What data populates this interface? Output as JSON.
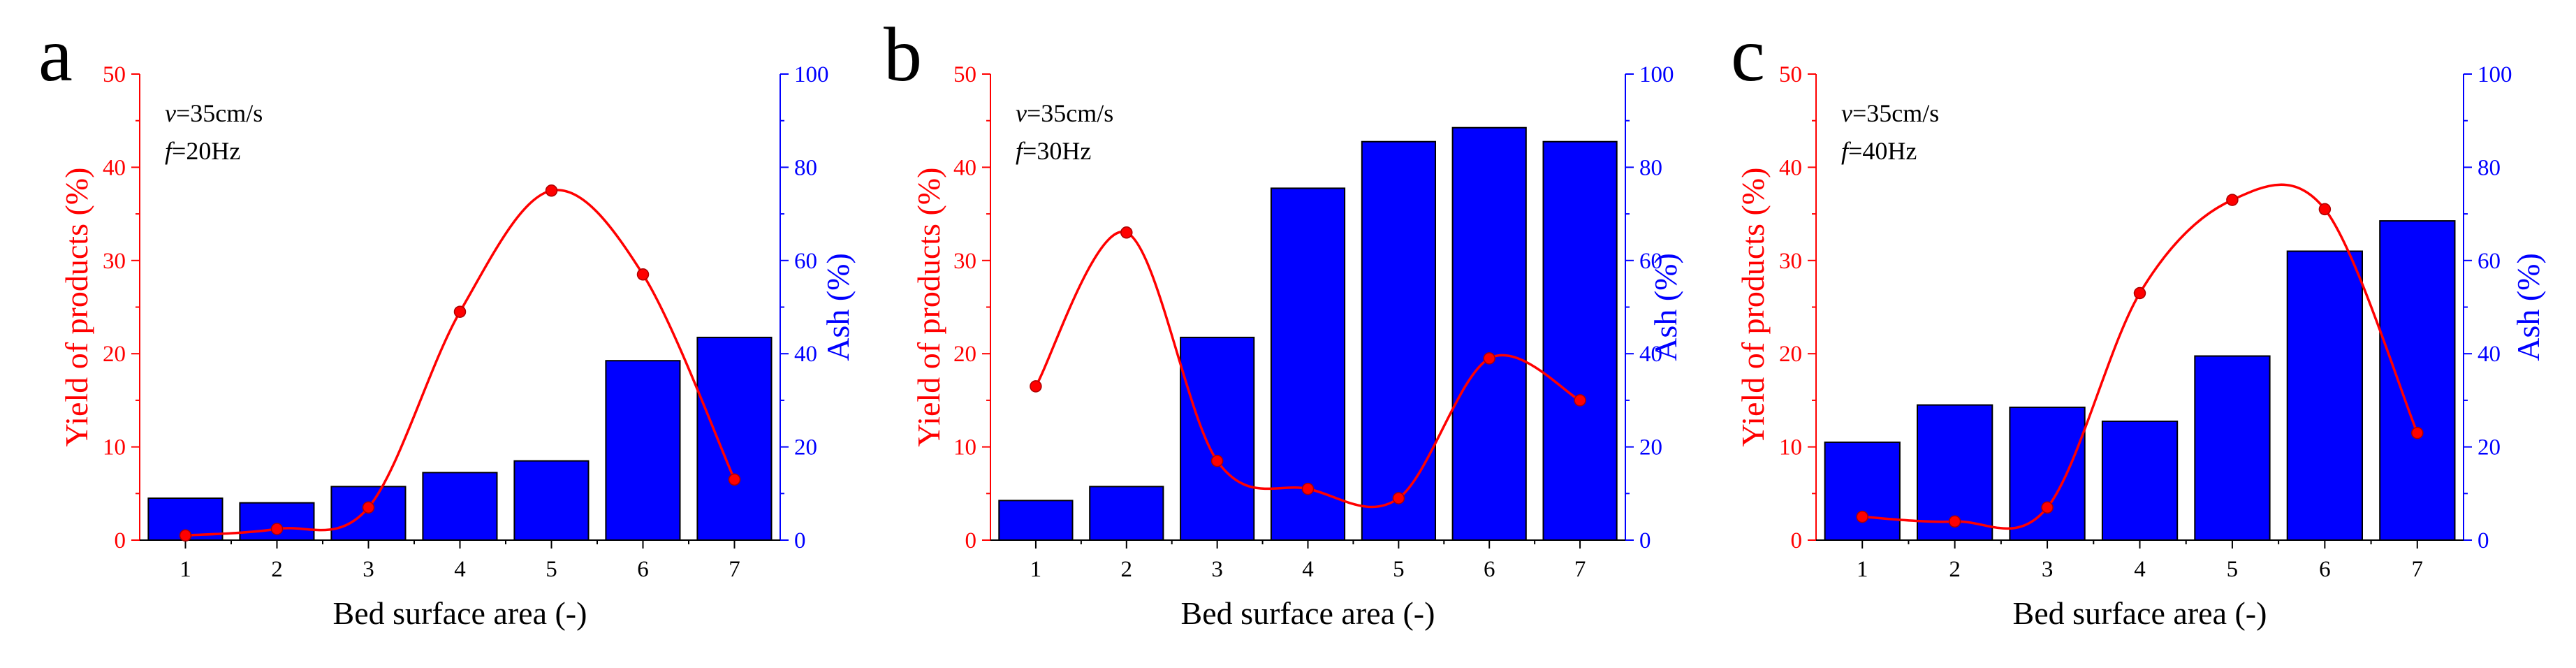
{
  "chart_data": [
    {
      "type": "bar",
      "panel_label": "a",
      "annotation": {
        "v_var": "v",
        "v_rest": "=35cm/s",
        "f_var": "f",
        "f_rest": "=20Hz"
      },
      "categories": [
        "1",
        "2",
        "3",
        "4",
        "5",
        "6",
        "7"
      ],
      "xlabel": "Bed surface area (-)",
      "ylabel_left": "Yield of products (%)",
      "ylabel_right": "Ash (%)",
      "ylim_left": [
        0,
        50
      ],
      "ylim_right": [
        0,
        100
      ],
      "yticks_left": [
        "0",
        "10",
        "20",
        "30",
        "40",
        "50"
      ],
      "yticks_right": [
        "0",
        "20",
        "40",
        "60",
        "80",
        "100"
      ],
      "series": [
        {
          "axis": "right",
          "kind": "bar",
          "color": "#0000ff",
          "values": [
            9,
            8,
            11.5,
            14.5,
            17,
            38.5,
            43.5
          ]
        },
        {
          "axis": "left",
          "kind": "line",
          "color": "#ff0000",
          "values": [
            0.5,
            1.2,
            3.5,
            24.5,
            37.5,
            28.5,
            6.5
          ]
        }
      ]
    },
    {
      "type": "bar",
      "panel_label": "b",
      "annotation": {
        "v_var": "v",
        "v_rest": "=35cm/s",
        "f_var": "f",
        "f_rest": "=30Hz"
      },
      "categories": [
        "1",
        "2",
        "3",
        "4",
        "5",
        "6",
        "7"
      ],
      "xlabel": "Bed surface area (-)",
      "ylabel_left": "Yield of products (%)",
      "ylabel_right": "Ash (%)",
      "ylim_left": [
        0,
        50
      ],
      "ylim_right": [
        0,
        100
      ],
      "yticks_left": [
        "0",
        "10",
        "20",
        "30",
        "40",
        "50"
      ],
      "yticks_right": [
        "0",
        "20",
        "40",
        "60",
        "80",
        "100"
      ],
      "series": [
        {
          "axis": "right",
          "kind": "bar",
          "color": "#0000ff",
          "values": [
            8.5,
            11.5,
            43.5,
            75.5,
            85.5,
            88.5,
            85.5
          ]
        },
        {
          "axis": "left",
          "kind": "line",
          "color": "#ff0000",
          "values": [
            16.5,
            33,
            8.5,
            5.5,
            4.5,
            19.5,
            15
          ]
        }
      ]
    },
    {
      "type": "bar",
      "panel_label": "c",
      "annotation": {
        "v_var": "v",
        "v_rest": "=35cm/s",
        "f_var": "f",
        "f_rest": "=40Hz"
      },
      "categories": [
        "1",
        "2",
        "3",
        "4",
        "5",
        "6",
        "7"
      ],
      "xlabel": "Bed surface area (-)",
      "ylabel_left": "Yield of products (%)",
      "ylabel_right": "Ash (%)",
      "ylim_left": [
        0,
        50
      ],
      "ylim_right": [
        0,
        100
      ],
      "yticks_left": [
        "0",
        "10",
        "20",
        "30",
        "40",
        "50"
      ],
      "yticks_right": [
        "0",
        "20",
        "40",
        "60",
        "80",
        "100"
      ],
      "series": [
        {
          "axis": "right",
          "kind": "bar",
          "color": "#0000ff",
          "values": [
            21,
            29,
            28.5,
            25.5,
            39.5,
            62,
            68.5
          ]
        },
        {
          "axis": "left",
          "kind": "line",
          "color": "#ff0000",
          "values": [
            2.5,
            2,
            3.5,
            26.5,
            36.5,
            35.5,
            11.5
          ]
        }
      ]
    }
  ]
}
